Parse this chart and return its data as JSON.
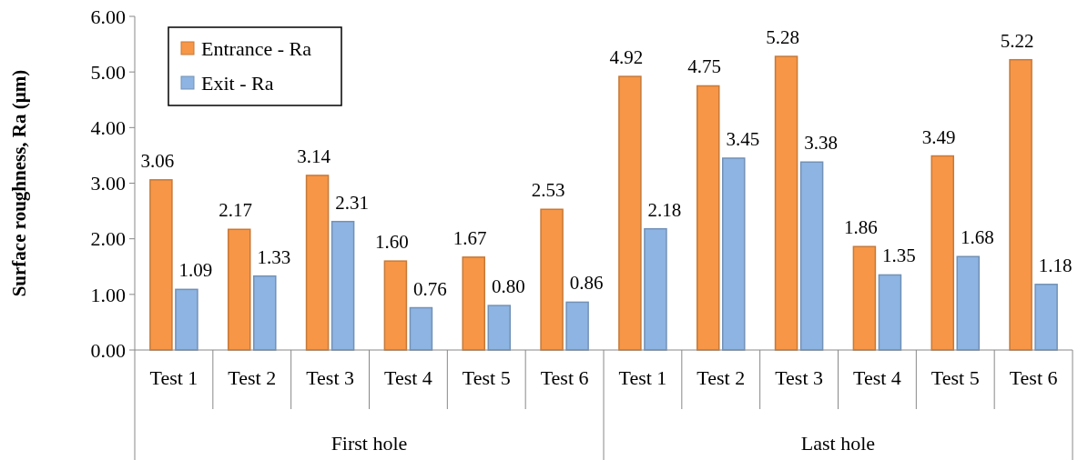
{
  "chart_data": {
    "type": "bar",
    "ylabel": "Surface roughness, Ra (µm)",
    "categories": [
      "Test 1",
      "Test 2",
      "Test 3",
      "Test 4",
      "Test 5",
      "Test 6",
      "Test 1",
      "Test 2",
      "Test 3",
      "Test 4",
      "Test 5",
      "Test 6"
    ],
    "series": [
      {
        "name": "Entrance - Ra",
        "color": "#f79646",
        "values": [
          3.06,
          2.17,
          3.14,
          1.6,
          1.67,
          2.53,
          4.92,
          4.75,
          5.28,
          1.86,
          3.49,
          5.22
        ],
        "value_labels": [
          "3.06",
          "2.17",
          "3.14",
          "1.60",
          "1.67",
          "2.53",
          "4.92",
          "4.75",
          "5.28",
          "1.86",
          "3.49",
          "5.22"
        ]
      },
      {
        "name": "Exit - Ra",
        "color": "#8db4e2",
        "values": [
          1.09,
          1.33,
          2.31,
          0.76,
          0.8,
          0.86,
          2.18,
          3.45,
          3.38,
          1.35,
          1.68,
          1.18
        ],
        "value_labels": [
          "1.09",
          "1.33",
          "2.31",
          "0.76",
          "0.80",
          "0.86",
          "2.18",
          "3.45",
          "3.38",
          "1.35",
          "1.68",
          "1.18"
        ]
      }
    ],
    "ylim": [
      0,
      6
    ],
    "yticks": [
      {
        "value": 0,
        "label": "0.00"
      },
      {
        "value": 1,
        "label": "1.00"
      },
      {
        "value": 2,
        "label": "2.00"
      },
      {
        "value": 3,
        "label": "3.00"
      },
      {
        "value": 4,
        "label": "4.00"
      },
      {
        "value": 5,
        "label": "5.00"
      },
      {
        "value": 6,
        "label": "6.00"
      }
    ],
    "annotations": [
      "First hole",
      "Last hole"
    ],
    "grid": false,
    "legend": "top left"
  }
}
